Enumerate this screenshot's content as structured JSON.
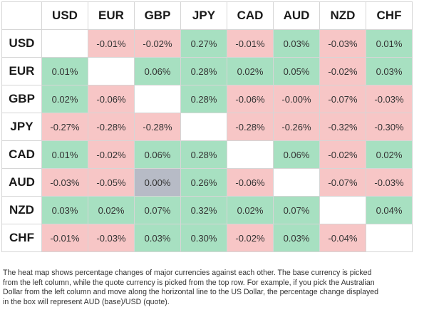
{
  "colors": {
    "positive": "#a7e0c1",
    "negative": "#f7c6c6",
    "neutral": "#b7bbc6",
    "empty": "#ffffff"
  },
  "heatmap": {
    "currencies": [
      "USD",
      "EUR",
      "GBP",
      "JPY",
      "CAD",
      "AUD",
      "NZD",
      "CHF"
    ],
    "rows": [
      {
        "base": "USD",
        "cells": [
          "",
          "-0.01%",
          "-0.02%",
          "0.27%",
          "-0.01%",
          "0.03%",
          "-0.03%",
          "0.01%"
        ]
      },
      {
        "base": "EUR",
        "cells": [
          "0.01%",
          "",
          "0.06%",
          "0.28%",
          "0.02%",
          "0.05%",
          "-0.02%",
          "0.03%"
        ]
      },
      {
        "base": "GBP",
        "cells": [
          "0.02%",
          "-0.06%",
          "",
          "0.28%",
          "-0.06%",
          "-0.00%",
          "-0.07%",
          "-0.03%"
        ]
      },
      {
        "base": "JPY",
        "cells": [
          "-0.27%",
          "-0.28%",
          "-0.28%",
          "",
          "-0.28%",
          "-0.26%",
          "-0.32%",
          "-0.30%"
        ]
      },
      {
        "base": "CAD",
        "cells": [
          "0.01%",
          "-0.02%",
          "0.06%",
          "0.28%",
          "",
          "0.06%",
          "-0.02%",
          "0.02%"
        ]
      },
      {
        "base": "AUD",
        "cells": [
          "-0.03%",
          "-0.05%",
          "0.00%",
          "0.26%",
          "-0.06%",
          "",
          "-0.07%",
          "-0.03%"
        ]
      },
      {
        "base": "NZD",
        "cells": [
          "0.03%",
          "0.02%",
          "0.07%",
          "0.32%",
          "0.02%",
          "0.07%",
          "",
          "0.04%"
        ]
      },
      {
        "base": "CHF",
        "cells": [
          "-0.01%",
          "-0.03%",
          "0.03%",
          "0.30%",
          "-0.02%",
          "0.03%",
          "-0.04%",
          ""
        ]
      }
    ]
  },
  "caption": {
    "line1": "The heat map shows percentage changes of major currencies against each other. The base currency is picked",
    "line2": "from the left column, while the quote currency is picked from the top row. For example, if you pick the Australian",
    "line3": "Dollar from the left column and move along the horizontal line to the US Dollar, the percentage change displayed",
    "line4": "in the box will represent AUD (base)/USD (quote)."
  }
}
